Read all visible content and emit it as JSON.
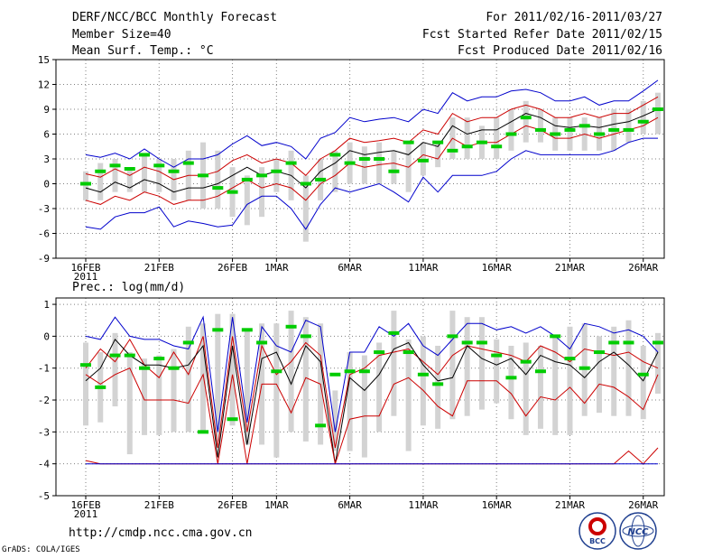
{
  "header": {
    "title": "DERF/NCC/BCC Monthly Forecast",
    "member_size": "Member Size=40",
    "variable": "Mean Surf. Temp.: °C",
    "period": "For 2011/02/16-2011/03/27",
    "started": "Fcst Started Refer Date 2011/02/15",
    "produced": "Fcst Produced Date 2011/02/16"
  },
  "footer": {
    "url": "http://cmdp.ncc.cma.gov.cn",
    "grads": "GrADS: COLA/IGES"
  },
  "logos": {
    "bcc": "BCC",
    "ncc": "NCC"
  },
  "colors": {
    "grid": "#808080",
    "box": "#d3d3d3",
    "median": "#00cc00",
    "mean": "#000000",
    "red": "#cc0000",
    "blue": "#0000cc"
  },
  "chart_data": [
    {
      "type": "line",
      "title": "Mean Surf. Temp.: °C",
      "x": [
        "16FEB",
        "17FEB",
        "18FEB",
        "19FEB",
        "20FEB",
        "21FEB",
        "22FEB",
        "23FEB",
        "24FEB",
        "25FEB",
        "26FEB",
        "27FEB",
        "28FEB",
        "1MAR",
        "2MAR",
        "3MAR",
        "4MAR",
        "5MAR",
        "6MAR",
        "7MAR",
        "8MAR",
        "9MAR",
        "10MAR",
        "11MAR",
        "12MAR",
        "13MAR",
        "14MAR",
        "15MAR",
        "16MAR",
        "17MAR",
        "18MAR",
        "19MAR",
        "20MAR",
        "21MAR",
        "22MAR",
        "23MAR",
        "24MAR",
        "25MAR",
        "26MAR",
        "27MAR"
      ],
      "xticks": [
        "16FEB",
        "21FEB",
        "26FEB",
        "1MAR",
        "6MAR",
        "11MAR",
        "16MAR",
        "21MAR",
        "26MAR"
      ],
      "xyear": "2011",
      "ylim": [
        -9,
        15
      ],
      "yticks": [
        15,
        12,
        9,
        6,
        3,
        0,
        -3,
        -6,
        -9
      ],
      "series": [
        {
          "name": "upper",
          "color": "blue",
          "values": [
            3.5,
            3.2,
            3.7,
            3.0,
            4.2,
            3.0,
            2.0,
            3.0,
            3.0,
            3.5,
            4.8,
            5.8,
            4.6,
            5.0,
            4.5,
            3.0,
            5.5,
            6.2,
            8.0,
            7.5,
            7.8,
            8.0,
            7.5,
            9.0,
            8.5,
            11.0,
            10.0,
            10.5,
            10.5,
            11.2,
            11.4,
            11.0,
            10.0,
            10.0,
            10.5,
            9.5,
            10.0,
            10.0,
            11.2,
            12.5
          ]
        },
        {
          "name": "upper_mid",
          "color": "red",
          "values": [
            1.2,
            0.8,
            1.8,
            1.0,
            2.0,
            1.5,
            0.5,
            1.0,
            1.0,
            1.5,
            2.8,
            3.5,
            2.5,
            3.0,
            2.5,
            1.0,
            3.0,
            4.0,
            5.5,
            5.0,
            5.2,
            5.5,
            5.0,
            6.5,
            6.0,
            8.5,
            7.5,
            8.0,
            8.0,
            9.0,
            9.5,
            9.0,
            8.0,
            8.0,
            8.5,
            8.0,
            8.5,
            8.5,
            9.5,
            10.5
          ]
        },
        {
          "name": "mean",
          "color": "mean",
          "values": [
            -0.5,
            -1.0,
            0.2,
            -0.5,
            0.5,
            0.0,
            -1.0,
            -0.5,
            -0.5,
            0.0,
            1.0,
            2.0,
            1.0,
            1.5,
            1.0,
            -0.5,
            1.5,
            2.5,
            4.0,
            3.5,
            3.8,
            4.0,
            3.5,
            5.0,
            4.5,
            7.0,
            6.0,
            6.5,
            6.5,
            7.5,
            8.5,
            8.0,
            7.0,
            6.8,
            7.0,
            6.8,
            7.2,
            7.5,
            8.2,
            9.0
          ]
        },
        {
          "name": "lower_mid",
          "color": "red",
          "values": [
            -2.0,
            -2.5,
            -1.5,
            -2.0,
            -1.0,
            -1.5,
            -2.5,
            -2.0,
            -2.0,
            -1.5,
            -0.5,
            0.5,
            -0.5,
            0.0,
            -0.5,
            -2.0,
            0.0,
            1.0,
            2.5,
            2.0,
            2.3,
            2.5,
            2.0,
            3.5,
            3.0,
            5.5,
            4.5,
            5.0,
            5.0,
            6.0,
            7.0,
            6.5,
            5.5,
            5.5,
            6.0,
            5.5,
            6.0,
            6.5,
            7.0,
            8.0
          ]
        },
        {
          "name": "lower",
          "color": "blue",
          "values": [
            -5.2,
            -5.5,
            -4.0,
            -3.5,
            -3.5,
            -2.8,
            -5.2,
            -4.5,
            -4.8,
            -5.2,
            -5.0,
            -2.5,
            -1.5,
            -1.5,
            -3.0,
            -5.5,
            -2.5,
            -0.5,
            -1.0,
            -0.5,
            0.0,
            -1.0,
            -2.2,
            0.8,
            -1.0,
            1.0,
            1.0,
            1.0,
            1.5,
            3.0,
            4.0,
            3.5,
            3.5,
            3.5,
            3.5,
            3.5,
            4.0,
            5.0,
            5.5,
            5.5
          ]
        }
      ],
      "boxes": [
        [
          -2,
          1.5
        ],
        [
          -2,
          2.5
        ],
        [
          -1,
          3
        ],
        [
          -1,
          2
        ],
        [
          -1,
          3.5
        ],
        [
          -1,
          3
        ],
        [
          -2,
          3
        ],
        [
          -2,
          4
        ],
        [
          -3,
          5
        ],
        [
          -3,
          4
        ],
        [
          -4,
          2
        ],
        [
          -5,
          1
        ],
        [
          -4,
          2
        ],
        [
          -1,
          3
        ],
        [
          -2,
          4
        ],
        [
          -7,
          1
        ],
        [
          -2,
          3
        ],
        [
          -1,
          4
        ],
        [
          0,
          5
        ],
        [
          0,
          4.5
        ],
        [
          0,
          5
        ],
        [
          0,
          4
        ],
        [
          -1,
          5
        ],
        [
          1,
          5
        ],
        [
          2,
          5
        ],
        [
          3,
          8
        ],
        [
          3,
          8
        ],
        [
          3,
          7
        ],
        [
          3,
          8
        ],
        [
          4,
          9
        ],
        [
          5,
          10
        ],
        [
          5,
          9
        ],
        [
          4,
          8
        ],
        [
          4,
          8
        ],
        [
          4,
          8
        ],
        [
          4,
          8
        ],
        [
          4,
          9
        ],
        [
          5,
          9
        ],
        [
          6,
          10
        ],
        [
          6,
          11
        ]
      ],
      "medians": [
        0,
        1.5,
        2.2,
        1.8,
        3.5,
        2.2,
        1.5,
        2.5,
        1.0,
        -0.5,
        -1.0,
        0.5,
        1.0,
        1.5,
        2.5,
        0.0,
        0.5,
        3.5,
        2.5,
        3.0,
        3.0,
        1.5,
        5.0,
        2.8,
        5.0,
        4.0,
        4.5,
        5.0,
        4.5,
        6.0,
        8.0,
        6.5,
        6.0,
        6.5,
        7.0,
        6.0,
        6.5,
        6.5,
        7.5,
        9.0
      ]
    },
    {
      "type": "line",
      "title": "Prec.: log(mm/d)",
      "x": [
        "16FEB",
        "17FEB",
        "18FEB",
        "19FEB",
        "20FEB",
        "21FEB",
        "22FEB",
        "23FEB",
        "24FEB",
        "25FEB",
        "26FEB",
        "27FEB",
        "28FEB",
        "1MAR",
        "2MAR",
        "3MAR",
        "4MAR",
        "5MAR",
        "6MAR",
        "7MAR",
        "8MAR",
        "9MAR",
        "10MAR",
        "11MAR",
        "12MAR",
        "13MAR",
        "14MAR",
        "15MAR",
        "16MAR",
        "17MAR",
        "18MAR",
        "19MAR",
        "20MAR",
        "21MAR",
        "22MAR",
        "23MAR",
        "24MAR",
        "25MAR",
        "26MAR",
        "27MAR"
      ],
      "xticks": [
        "16FEB",
        "21FEB",
        "26FEB",
        "1MAR",
        "6MAR",
        "11MAR",
        "16MAR",
        "21MAR",
        "26MAR"
      ],
      "xyear": "2011",
      "ylim": [
        -5,
        1.2
      ],
      "yticks": [
        1,
        0,
        -1,
        -2,
        -3,
        -4,
        -5
      ],
      "series": [
        {
          "name": "upper",
          "color": "blue",
          "values": [
            0.0,
            -0.1,
            0.6,
            0.0,
            -0.1,
            -0.1,
            -0.3,
            -0.4,
            0.6,
            -3.0,
            0.6,
            -2.7,
            0.3,
            -0.3,
            -0.5,
            0.5,
            0.3,
            -3.0,
            -0.5,
            -0.5,
            0.3,
            0.0,
            0.4,
            -0.3,
            -0.6,
            -0.1,
            0.4,
            0.4,
            0.2,
            0.3,
            0.1,
            0.3,
            0.0,
            -0.4,
            0.4,
            0.3,
            0.1,
            0.2,
            0.0,
            -0.5
          ]
        },
        {
          "name": "upper_mid",
          "color": "red",
          "values": [
            -1.0,
            -0.4,
            -0.8,
            -0.1,
            -0.9,
            -1.3,
            -0.5,
            -1.2,
            0.0,
            -3.5,
            0.0,
            -3.0,
            -0.3,
            -1.2,
            -0.8,
            -0.2,
            -0.6,
            -3.5,
            -1.2,
            -1.0,
            -0.6,
            -0.5,
            -0.4,
            -0.8,
            -1.2,
            -0.6,
            -0.3,
            -0.4,
            -0.5,
            -0.6,
            -0.8,
            -0.3,
            -0.5,
            -0.8,
            -0.4,
            -0.5,
            -0.6,
            -0.5,
            -0.8,
            -1.0
          ]
        },
        {
          "name": "mean",
          "color": "mean",
          "values": [
            -1.4,
            -1.0,
            -0.1,
            -0.6,
            -0.9,
            -0.9,
            -1.0,
            -0.9,
            -0.3,
            -3.8,
            -0.3,
            -3.4,
            -0.7,
            -0.5,
            -1.5,
            -0.3,
            -0.8,
            -4.0,
            -1.3,
            -1.7,
            -1.2,
            -0.4,
            -0.2,
            -0.9,
            -1.4,
            -1.3,
            -0.3,
            -0.7,
            -0.9,
            -0.7,
            -1.2,
            -0.6,
            -0.8,
            -0.9,
            -1.3,
            -0.8,
            -0.5,
            -0.9,
            -1.4,
            -0.5
          ]
        },
        {
          "name": "lower_mid",
          "color": "red",
          "values": [
            -1.2,
            -1.5,
            -1.2,
            -1.0,
            -2.0,
            -2.0,
            -2.0,
            -2.1,
            -1.2,
            -4.0,
            -1.2,
            -4.0,
            -1.5,
            -1.5,
            -2.4,
            -1.3,
            -1.5,
            -4.0,
            -2.6,
            -2.5,
            -2.5,
            -1.5,
            -1.3,
            -1.7,
            -2.2,
            -2.5,
            -1.4,
            -1.4,
            -1.4,
            -1.8,
            -2.5,
            -1.9,
            -2.0,
            -1.6,
            -2.1,
            -1.5,
            -1.6,
            -1.9,
            -2.3,
            -1.2
          ]
        },
        {
          "name": "lower_min",
          "color": "red",
          "values": [
            -3.9,
            -4.0,
            -4.0,
            -4.0,
            -4.0,
            -4.0,
            -4.0,
            -4.0,
            -4.0,
            -4.0,
            -4.0,
            -4.0,
            -4.0,
            -4.0,
            -4.0,
            -4.0,
            -4.0,
            -4.0,
            -4.0,
            -4.0,
            -4.0,
            -4.0,
            -4.0,
            -4.0,
            -4.0,
            -4.0,
            -4.0,
            -4.0,
            -4.0,
            -4.0,
            -4.0,
            -4.0,
            -4.0,
            -4.0,
            -4.0,
            -4.0,
            -4.0,
            -3.6,
            -4.0,
            -3.5
          ]
        },
        {
          "name": "lower",
          "color": "blue",
          "values": [
            -4.0,
            -4.0,
            -4.0,
            -4.0,
            -4.0,
            -4.0,
            -4.0,
            -4.0,
            -4.0,
            -4.0,
            -4.0,
            -4.0,
            -4.0,
            -4.0,
            -4.0,
            -4.0,
            -4.0,
            -4.0,
            -4.0,
            -4.0,
            -4.0,
            -4.0,
            -4.0,
            -4.0,
            -4.0,
            -4.0,
            -4.0,
            -4.0,
            -4.0,
            -4.0,
            -4.0,
            -4.0,
            -4.0,
            -4.0,
            -4.0,
            -4.0,
            -4.0,
            -4.0,
            -4.0,
            -4.0
          ]
        }
      ],
      "boxes": [
        [
          -2.8,
          -0.2
        ],
        [
          -2.7,
          -0.5
        ],
        [
          -2.2,
          0.1
        ],
        [
          -3.7,
          -0.5
        ],
        [
          -3.1,
          -0.7
        ],
        [
          -3.1,
          -0.6
        ],
        [
          -3.0,
          -0.4
        ],
        [
          -3.0,
          0.3
        ],
        [
          -3.0,
          0.4
        ],
        [
          -3.3,
          0.7
        ],
        [
          -2.8,
          0.7
        ],
        [
          -3.4,
          0.2
        ],
        [
          -3.4,
          0.4
        ],
        [
          -3.8,
          0.4
        ],
        [
          -3.0,
          0.8
        ],
        [
          -3.3,
          0.6
        ],
        [
          -3.4,
          0.4
        ],
        [
          -3.6,
          -1.7
        ],
        [
          -3.6,
          -0.5
        ],
        [
          -3.8,
          -0.6
        ],
        [
          -3.0,
          -0.2
        ],
        [
          -2.5,
          0.8
        ],
        [
          -3.6,
          -0.1
        ],
        [
          -2.8,
          0.0
        ],
        [
          -2.9,
          -0.3
        ],
        [
          -2.6,
          0.8
        ],
        [
          -2.5,
          0.6
        ],
        [
          -2.3,
          0.6
        ],
        [
          -2.1,
          -0.1
        ],
        [
          -2.6,
          -0.3
        ],
        [
          -3.1,
          -0.2
        ],
        [
          -2.9,
          -0.3
        ],
        [
          -3.1,
          0.0
        ],
        [
          -3.1,
          0.3
        ],
        [
          -2.5,
          0.4
        ],
        [
          -2.4,
          0.0
        ],
        [
          -2.5,
          0.3
        ],
        [
          -2.5,
          0.5
        ],
        [
          -2.6,
          -0.3
        ],
        [
          -1.8,
          0.1
        ]
      ],
      "medians": [
        -0.9,
        -1.6,
        -0.6,
        -0.6,
        -1.0,
        -0.7,
        -1.0,
        -0.2,
        -3.0,
        0.2,
        -2.6,
        0.2,
        -0.2,
        -1.1,
        0.3,
        0.0,
        -2.8,
        -1.2,
        -1.1,
        -1.1,
        -0.5,
        0.1,
        -0.5,
        -1.2,
        -1.5,
        0.0,
        -0.2,
        -0.2,
        -0.6,
        -1.3,
        -0.8,
        -1.1,
        0.0,
        -0.7,
        -1.0,
        -0.5,
        -0.2,
        -0.2,
        -1.2,
        -0.2
      ]
    }
  ]
}
